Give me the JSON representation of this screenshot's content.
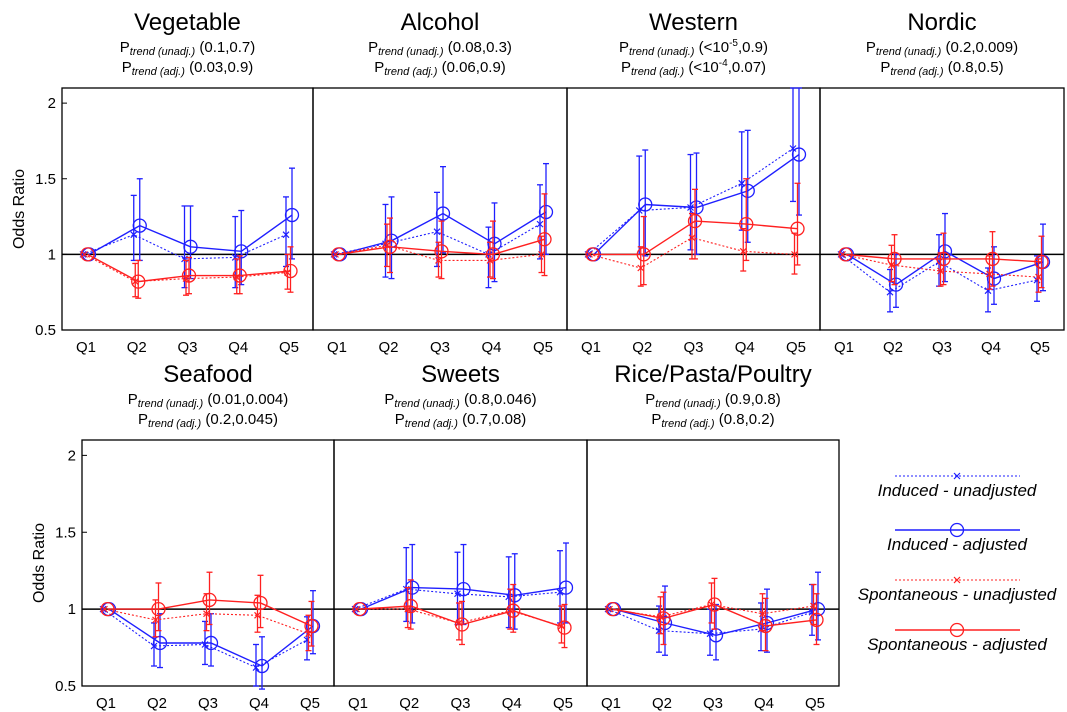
{
  "y_axis_label": "Odds Ratio",
  "legend": {
    "entries": [
      {
        "label": "Induced - unadjusted",
        "color": "#0000ff",
        "style": "dotted",
        "marker": "x"
      },
      {
        "label": "Induced - adjusted",
        "color": "#0000ff",
        "style": "solid",
        "marker": "circle"
      },
      {
        "label": "Spontaneous - unadjusted",
        "color": "#ff0000",
        "style": "dotted",
        "marker": "x"
      },
      {
        "label": "Spontaneous - adjusted",
        "color": "#ff0000",
        "style": "solid",
        "marker": "circle"
      }
    ]
  },
  "chart_data": [
    {
      "type": "line",
      "title": "Vegetable",
      "p_unadj": {
        "label": "P",
        "sub": "trend (unadj.)",
        "pre": " (",
        "sup": "",
        "post": "0.1,0.7)"
      },
      "p_adj": {
        "label": "P",
        "sub": "trend (adj.)",
        "pre": " (",
        "sup": "",
        "post": "0.03,0.9)"
      },
      "categories": [
        "Q1",
        "Q2",
        "Q3",
        "Q4",
        "Q5"
      ],
      "ylim": [
        0.5,
        2.1
      ],
      "yticks": [
        "0.5",
        "1",
        "1.5",
        "2"
      ],
      "reference_line": 1,
      "series": [
        {
          "name": "Induced - unadjusted",
          "values": [
            1,
            1.13,
            0.97,
            0.98,
            1.13
          ],
          "lower": [
            1,
            0.96,
            0.78,
            0.78,
            0.92
          ],
          "upper": [
            1,
            1.39,
            1.32,
            1.25,
            1.38
          ]
        },
        {
          "name": "Induced - adjusted",
          "values": [
            1,
            1.19,
            1.05,
            1.02,
            1.26
          ],
          "lower": [
            1,
            0.96,
            0.84,
            0.8,
            0.97
          ],
          "upper": [
            1,
            1.5,
            1.32,
            1.29,
            1.57
          ]
        },
        {
          "name": "Spontaneous - unadjusted",
          "values": [
            1,
            0.82,
            0.84,
            0.85,
            0.88
          ],
          "lower": [
            1,
            0.72,
            0.73,
            0.74,
            0.77
          ],
          "upper": [
            1,
            0.94,
            0.96,
            0.97,
            1.0
          ]
        },
        {
          "name": "Spontaneous - adjusted",
          "values": [
            1,
            0.82,
            0.86,
            0.86,
            0.89
          ],
          "lower": [
            1,
            0.71,
            0.74,
            0.74,
            0.75
          ],
          "upper": [
            1,
            0.96,
            0.98,
            0.99,
            1.05
          ]
        }
      ]
    },
    {
      "type": "line",
      "title": "Alcohol",
      "p_unadj": {
        "label": "P",
        "sub": "trend (unadj.)",
        "pre": " (",
        "sup": "",
        "post": "0.08,0.3)"
      },
      "p_adj": {
        "label": "P",
        "sub": "trend (adj.)",
        "pre": " (",
        "sup": "",
        "post": "0.06,0.9)"
      },
      "categories": [
        "Q1",
        "Q2",
        "Q3",
        "Q4",
        "Q5"
      ],
      "ylim": [
        0.5,
        2.1
      ],
      "yticks": [
        "0.5",
        "1",
        "1.5",
        "2"
      ],
      "reference_line": 1,
      "series": [
        {
          "name": "Induced - unadjusted",
          "values": [
            1,
            1.07,
            1.15,
            1.0,
            1.2
          ],
          "lower": [
            1,
            0.85,
            0.92,
            0.78,
            0.97
          ],
          "upper": [
            1,
            1.33,
            1.41,
            1.18,
            1.46
          ]
        },
        {
          "name": "Induced - adjusted",
          "values": [
            1,
            1.09,
            1.27,
            1.07,
            1.28
          ],
          "lower": [
            1,
            0.84,
            1.01,
            0.82,
            1.0
          ],
          "upper": [
            1,
            1.38,
            1.58,
            1.34,
            1.6
          ]
        },
        {
          "name": "Spontaneous - unadjusted",
          "values": [
            1,
            1.06,
            0.96,
            0.96,
            1.0
          ],
          "lower": [
            1,
            0.92,
            0.85,
            0.85,
            0.88
          ],
          "upper": [
            1,
            1.2,
            1.08,
            1.08,
            1.12
          ]
        },
        {
          "name": "Spontaneous - adjusted",
          "values": [
            1,
            1.05,
            1.02,
            1.0,
            1.1
          ],
          "lower": [
            1,
            0.88,
            0.84,
            0.84,
            0.86
          ],
          "upper": [
            1,
            1.24,
            1.22,
            1.22,
            1.4
          ]
        }
      ]
    },
    {
      "type": "line",
      "title": "Western",
      "p_unadj": {
        "label": "P",
        "sub": "trend (unadj.)",
        "pre": " (<10",
        "sup": "-5",
        "post": ",0.9)"
      },
      "p_adj": {
        "label": "P",
        "sub": "trend (adj.)",
        "pre": " (<10",
        "sup": "-4",
        "post": ",0.07)"
      },
      "categories": [
        "Q1",
        "Q2",
        "Q3",
        "Q4",
        "Q5"
      ],
      "ylim": [
        0.5,
        2.1
      ],
      "yticks": [
        "0.5",
        "1",
        "1.5",
        "2"
      ],
      "reference_line": 1,
      "series": [
        {
          "name": "Induced - unadjusted",
          "values": [
            1,
            1.29,
            1.31,
            1.47,
            1.7
          ],
          "lower": [
            1,
            1.0,
            1.03,
            1.16,
            1.35
          ],
          "upper": [
            1,
            1.65,
            1.66,
            1.81,
            2.1
          ]
        },
        {
          "name": "Induced - adjusted",
          "values": [
            1,
            1.33,
            1.31,
            1.42,
            1.66
          ],
          "lower": [
            1,
            0.99,
            1.0,
            1.08,
            1.26
          ],
          "upper": [
            1,
            1.69,
            1.67,
            1.82,
            2.1
          ]
        },
        {
          "name": "Spontaneous - unadjusted",
          "values": [
            1,
            0.91,
            1.11,
            1.02,
            1.0
          ],
          "lower": [
            1,
            0.79,
            0.97,
            0.89,
            0.87
          ],
          "upper": [
            1,
            1.05,
            1.27,
            1.17,
            1.14
          ]
        },
        {
          "name": "Spontaneous - adjusted",
          "values": [
            1,
            1.0,
            1.22,
            1.2,
            1.17
          ],
          "lower": [
            1,
            0.8,
            0.97,
            0.96,
            0.93
          ],
          "upper": [
            1,
            1.25,
            1.43,
            1.5,
            1.47
          ]
        }
      ]
    },
    {
      "type": "line",
      "title": "Nordic",
      "p_unadj": {
        "label": "P",
        "sub": "trend (unadj.)",
        "pre": " (",
        "sup": "",
        "post": "0.2,0.009)"
      },
      "p_adj": {
        "label": "P",
        "sub": "trend (adj.)",
        "pre": " (",
        "sup": "",
        "post": "0.8,0.5)"
      },
      "categories": [
        "Q1",
        "Q2",
        "Q3",
        "Q4",
        "Q5"
      ],
      "ylim": [
        0.5,
        2.1
      ],
      "yticks": [
        "0.5",
        "1",
        "1.5",
        "2"
      ],
      "reference_line": 1,
      "series": [
        {
          "name": "Induced - unadjusted",
          "values": [
            1,
            0.75,
            0.95,
            0.76,
            0.83
          ],
          "lower": [
            1,
            0.62,
            0.79,
            0.62,
            0.69
          ],
          "upper": [
            1,
            0.9,
            1.13,
            0.91,
            0.99
          ]
        },
        {
          "name": "Induced - adjusted",
          "values": [
            1,
            0.8,
            1.02,
            0.84,
            0.95
          ],
          "lower": [
            1,
            0.65,
            0.82,
            0.67,
            0.76
          ],
          "upper": [
            1,
            1.0,
            1.27,
            1.05,
            1.2
          ]
        },
        {
          "name": "Spontaneous - unadjusted",
          "values": [
            1,
            0.93,
            0.89,
            0.87,
            0.85
          ],
          "lower": [
            1,
            0.82,
            0.79,
            0.77,
            0.75
          ],
          "upper": [
            1,
            1.06,
            1.01,
            0.99,
            0.97
          ]
        },
        {
          "name": "Spontaneous - adjusted",
          "values": [
            1,
            0.97,
            0.97,
            0.97,
            0.95
          ],
          "lower": [
            1,
            0.8,
            0.8,
            0.79,
            0.78
          ],
          "upper": [
            1,
            1.13,
            1.14,
            1.15,
            1.12
          ]
        }
      ]
    },
    {
      "type": "line",
      "title": "Seafood",
      "p_unadj": {
        "label": "P",
        "sub": "trend (unadj.)",
        "pre": " (",
        "sup": "",
        "post": "0.01,0.004)"
      },
      "p_adj": {
        "label": "P",
        "sub": "trend (adj.)",
        "pre": " (",
        "sup": "",
        "post": "0.2,0.045)"
      },
      "categories": [
        "Q1",
        "Q2",
        "Q3",
        "Q4",
        "Q5"
      ],
      "ylim": [
        0.5,
        2.1
      ],
      "yticks": [
        "0.5",
        "1",
        "1.5",
        "2"
      ],
      "reference_line": 1,
      "series": [
        {
          "name": "Induced - unadjusted",
          "values": [
            1,
            0.76,
            0.77,
            0.62,
            0.8
          ],
          "lower": [
            1,
            0.63,
            0.64,
            0.5,
            0.67
          ],
          "upper": [
            1,
            0.91,
            0.92,
            0.77,
            0.95
          ]
        },
        {
          "name": "Induced - adjusted",
          "values": [
            1,
            0.78,
            0.78,
            0.63,
            0.89
          ],
          "lower": [
            1,
            0.62,
            0.63,
            0.48,
            0.71
          ],
          "upper": [
            1,
            0.97,
            0.97,
            0.82,
            1.12
          ]
        },
        {
          "name": "Spontaneous - unadjusted",
          "values": [
            1,
            0.93,
            0.97,
            0.96,
            0.84
          ],
          "lower": [
            1,
            0.82,
            0.86,
            0.85,
            0.73
          ],
          "upper": [
            1,
            1.06,
            1.1,
            1.09,
            0.96
          ]
        },
        {
          "name": "Spontaneous - adjusted",
          "values": [
            1,
            1.0,
            1.06,
            1.04,
            0.89
          ],
          "lower": [
            1,
            0.86,
            0.9,
            0.88,
            0.76
          ],
          "upper": [
            1,
            1.17,
            1.24,
            1.22,
            1.05
          ]
        }
      ]
    },
    {
      "type": "line",
      "title": "Sweets",
      "p_unadj": {
        "label": "P",
        "sub": "trend (unadj.)",
        "pre": " (",
        "sup": "",
        "post": "0.8,0.046)"
      },
      "p_adj": {
        "label": "P",
        "sub": "trend (adj.)",
        "pre": " (",
        "sup": "",
        "post": "0.7,0.08)"
      },
      "categories": [
        "Q1",
        "Q2",
        "Q3",
        "Q4",
        "Q5"
      ],
      "ylim": [
        0.5,
        2.1
      ],
      "yticks": [
        "0.5",
        "1",
        "1.5",
        "2"
      ],
      "reference_line": 1,
      "series": [
        {
          "name": "Induced - unadjusted",
          "values": [
            1,
            1.13,
            1.1,
            1.08,
            1.11
          ],
          "lower": [
            1,
            0.92,
            0.9,
            0.88,
            0.91
          ],
          "upper": [
            1,
            1.4,
            1.37,
            1.34,
            1.38
          ]
        },
        {
          "name": "Induced - adjusted",
          "values": [
            1,
            1.14,
            1.13,
            1.09,
            1.14
          ],
          "lower": [
            1,
            0.91,
            0.9,
            0.87,
            0.91
          ],
          "upper": [
            1,
            1.42,
            1.42,
            1.36,
            1.43
          ]
        },
        {
          "name": "Spontaneous - unadjusted",
          "values": [
            1,
            1.0,
            0.91,
            0.99,
            0.89
          ],
          "lower": [
            1,
            0.88,
            0.8,
            0.87,
            0.78
          ],
          "upper": [
            1,
            1.14,
            1.04,
            1.13,
            1.02
          ]
        },
        {
          "name": "Spontaneous - adjusted",
          "values": [
            1,
            1.02,
            0.9,
            0.99,
            0.88
          ],
          "lower": [
            1,
            0.87,
            0.77,
            0.85,
            0.75
          ],
          "upper": [
            1,
            1.19,
            1.05,
            1.16,
            1.03
          ]
        }
      ]
    },
    {
      "type": "line",
      "title": "Rice/Pasta/Poultry",
      "p_unadj": {
        "label": "P",
        "sub": "trend (unadj.)",
        "pre": " (",
        "sup": "",
        "post": "0.9,0.8)"
      },
      "p_adj": {
        "label": "P",
        "sub": "trend (adj.)",
        "pre": " (",
        "sup": "",
        "post": "0.8,0.2)"
      },
      "categories": [
        "Q1",
        "Q2",
        "Q3",
        "Q4",
        "Q5"
      ],
      "ylim": [
        0.5,
        2.1
      ],
      "yticks": [
        "0.5",
        "1",
        "1.5",
        "2"
      ],
      "reference_line": 1,
      "series": [
        {
          "name": "Induced - unadjusted",
          "values": [
            1,
            0.86,
            0.84,
            0.87,
            0.98
          ],
          "lower": [
            1,
            0.72,
            0.7,
            0.73,
            0.83
          ],
          "upper": [
            1,
            1.02,
            1.0,
            1.04,
            1.16
          ]
        },
        {
          "name": "Induced - adjusted",
          "values": [
            1,
            0.91,
            0.83,
            0.91,
            1.0
          ],
          "lower": [
            1,
            0.7,
            0.67,
            0.72,
            0.8
          ],
          "upper": [
            1,
            1.15,
            1.03,
            1.13,
            1.24
          ]
        },
        {
          "name": "Spontaneous - unadjusted",
          "values": [
            1,
            0.95,
            1.03,
            0.97,
            1.02
          ],
          "lower": [
            1,
            0.84,
            0.91,
            0.86,
            0.9
          ],
          "upper": [
            1,
            1.08,
            1.17,
            1.1,
            1.16
          ]
        },
        {
          "name": "Spontaneous - adjusted",
          "values": [
            1,
            0.94,
            1.03,
            0.89,
            0.93
          ],
          "lower": [
            1,
            0.77,
            0.87,
            0.73,
            0.77
          ],
          "upper": [
            1,
            1.11,
            1.2,
            1.07,
            1.1
          ]
        }
      ]
    }
  ]
}
